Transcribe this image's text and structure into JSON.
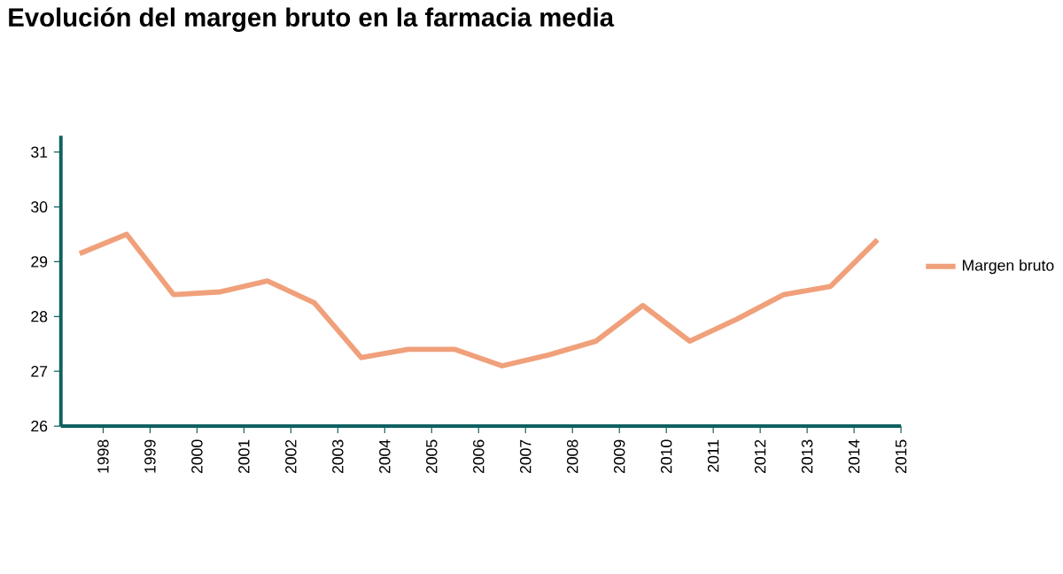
{
  "chart_data": {
    "type": "line",
    "title": "Evolución del margen bruto en la farmacia media",
    "x": [
      1997.5,
      1998.5,
      1999.5,
      2000.5,
      2001.5,
      2002.5,
      2003.5,
      2004.5,
      2005.5,
      2006.5,
      2007.5,
      2008.5,
      2009.5,
      2010.5,
      2011.5,
      2012.5,
      2013.5,
      2014.5
    ],
    "series": [
      {
        "name": "Margen bruto",
        "color": "#f0a07a",
        "values": [
          29.15,
          29.5,
          28.4,
          28.45,
          28.65,
          28.25,
          27.25,
          27.4,
          27.4,
          27.1,
          27.3,
          27.55,
          28.2,
          27.55,
          27.95,
          28.4,
          28.55,
          29.4
        ]
      }
    ],
    "xlim": [
      1997.1,
      2015
    ],
    "xticks": [
      1998,
      1999,
      2000,
      2001,
      2002,
      2003,
      2004,
      2005,
      2006,
      2007,
      2008,
      2009,
      2010,
      2011,
      2012,
      2013,
      2014,
      2015
    ],
    "ylim": [
      26,
      31.3
    ],
    "yticks": [
      26,
      27,
      28,
      29,
      30,
      31
    ],
    "legend": "right"
  }
}
